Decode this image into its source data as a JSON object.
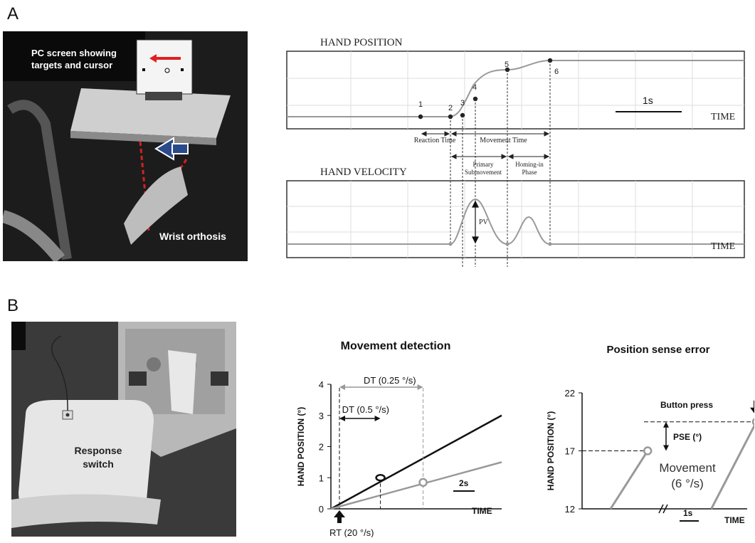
{
  "panel_a": {
    "letter": "A",
    "photo_caption_screen": "PC screen showing targets and cursor",
    "photo_caption_orthosis": "Wrist orthosis",
    "position_title": "HAND POSITION",
    "velocity_title": "HAND VELOCITY",
    "time_label": "TIME",
    "scale_bar": "1s",
    "point_labels": [
      "1",
      "2",
      "3",
      "4",
      "5",
      "6"
    ],
    "phase_reaction": "Reaction Time",
    "phase_movement": "Movement Time",
    "phase_primary": "Primary Submovement",
    "phase_homing": "Homing-in Phase",
    "pv_label": "PV"
  },
  "panel_b": {
    "letter": "B",
    "photo_caption_switch": "Response switch"
  },
  "chart_data": [
    {
      "type": "line",
      "title": "Movement detection",
      "xlabel": "TIME",
      "ylabel": "HAND POSITION (°)",
      "ylim": [
        0,
        4
      ],
      "yticks": [
        "0",
        "1",
        "2",
        "3",
        "4"
      ],
      "scale_bar": "2s",
      "series": [
        {
          "x": [
            0,
            10
          ],
          "y": [
            0,
            3.0
          ],
          "color": "#111111"
        },
        {
          "x": [
            0,
            10
          ],
          "y": [
            0,
            1.5
          ],
          "color": "#999999"
        }
      ],
      "annotations": {
        "dt_fast": "DT (0.25 °/s)",
        "dt_slow": "DT (0.5 °/s)",
        "rt": "RT (20 °/s)"
      }
    },
    {
      "type": "line",
      "title": "Position sense error",
      "xlabel": "TIME",
      "ylabel": "HAND POSITION (°)",
      "ylim": [
        12,
        22
      ],
      "yticks": [
        "12",
        "17",
        "22"
      ],
      "scale_bar": "1s",
      "series": [
        {
          "x": [
            0,
            1.4
          ],
          "y": [
            12,
            17
          ],
          "color": "#999999"
        },
        {
          "x": [
            3.8,
            5.5
          ],
          "y": [
            12,
            19.5
          ],
          "color": "#999999"
        }
      ],
      "annotations": {
        "button_press": "Button press",
        "pse": "PSE (°)",
        "movement_line1": "Movement",
        "movement_line2": "(6 °/s)"
      }
    }
  ]
}
